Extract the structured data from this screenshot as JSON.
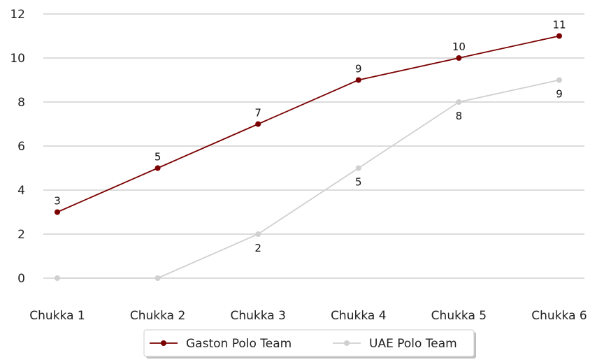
{
  "chart_data": {
    "type": "line",
    "categories": [
      "Chukka 1",
      "Chukka 2",
      "Chukka 3",
      "Chukka 4",
      "Chukka 5",
      "Chukka 6"
    ],
    "series": [
      {
        "name": "Gaston Polo Team",
        "values": [
          3,
          5,
          7,
          9,
          10,
          11
        ],
        "color": "#7b0000",
        "labels": [
          "3",
          "5",
          "7",
          "9",
          "10",
          "11"
        ],
        "label_position": "above"
      },
      {
        "name": "UAE Polo Team",
        "values": [
          0,
          0,
          2,
          5,
          8,
          9
        ],
        "color": "#d0d0d0",
        "labels": [
          "",
          "",
          "2",
          "5",
          "8",
          "9"
        ],
        "label_position": "below"
      }
    ],
    "yticks": [
      "0",
      "2",
      "4",
      "6",
      "8",
      "10",
      "12"
    ],
    "ylim": [
      -1,
      12
    ],
    "grid": "horizontal",
    "legend_position": "bottom-center"
  }
}
